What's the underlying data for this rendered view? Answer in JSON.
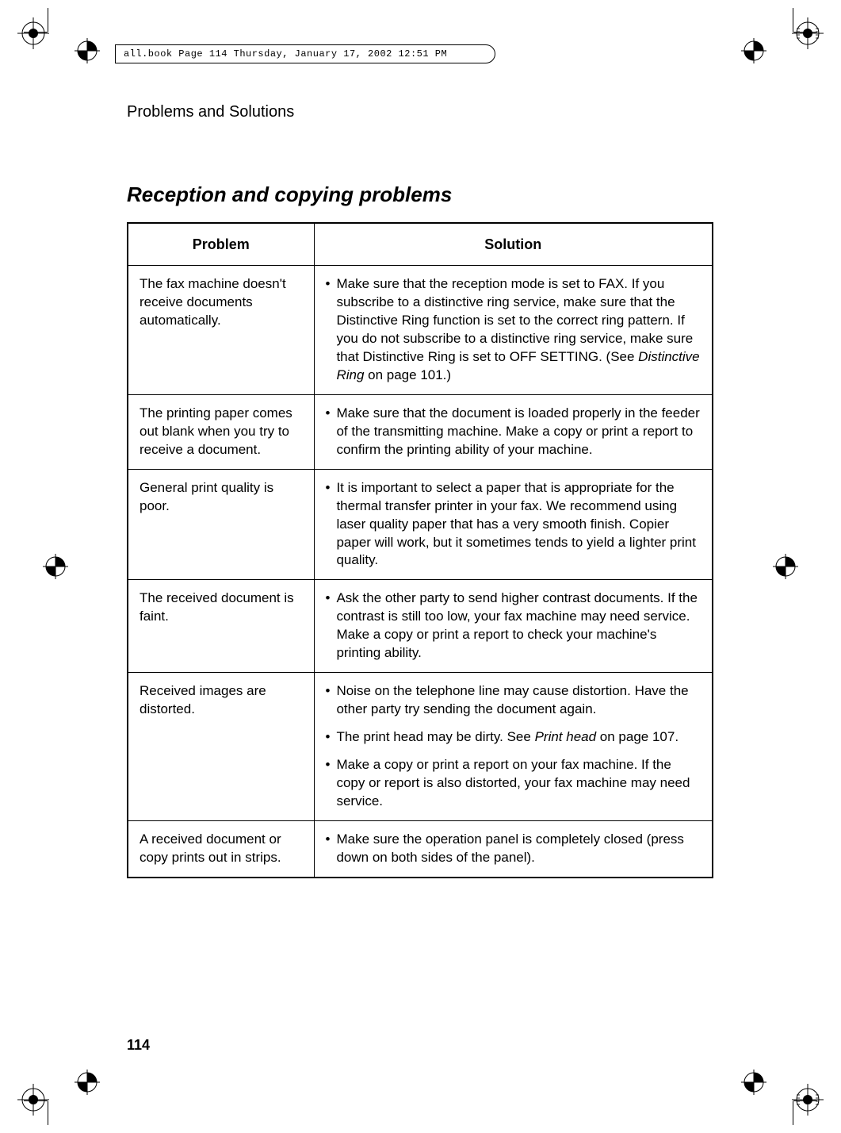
{
  "header_box": "all.book  Page 114  Thursday, January 17, 2002  12:51 PM",
  "running_header": "Problems and Solutions",
  "section_title": "Reception and copying problems",
  "table": {
    "headers": {
      "problem": "Problem",
      "solution": "Solution"
    },
    "rows": [
      {
        "problem": "The fax machine doesn't receive documents automatically.",
        "solutions": [
          {
            "pre": "Make sure that the reception mode is set to FAX. If you subscribe to a distinctive ring service, make sure that the Distinctive Ring function is set to the correct ring pattern. If you do not subscribe to a distinctive ring service, make sure that Distinctive Ring is set to OFF SETTING. (See ",
            "italic": "Distinctive Ring",
            "post": " on page 101.)"
          }
        ]
      },
      {
        "problem": "The printing paper comes out blank when you try to receive a document.",
        "solutions": [
          {
            "pre": "Make sure that the document is loaded properly in the feeder of the transmitting machine. Make a copy or print a report to confirm the printing ability of your machine.",
            "italic": "",
            "post": ""
          }
        ]
      },
      {
        "problem": "General print quality is poor.",
        "solutions": [
          {
            "pre": "It is important to select a paper that is appropriate for the thermal transfer printer in your fax. We recommend using laser quality paper that has a very smooth finish. Copier paper will work, but it sometimes tends to yield a lighter print quality.",
            "italic": "",
            "post": ""
          }
        ]
      },
      {
        "problem": "The received document is faint.",
        "solutions": [
          {
            "pre": "Ask the other party to send higher contrast documents. If the contrast is still too low, your fax machine may need service. Make a copy or print a report to check your machine's printing ability.",
            "italic": "",
            "post": ""
          }
        ]
      },
      {
        "problem": "Received images are distorted.",
        "solutions": [
          {
            "pre": "Noise on the telephone line may cause distortion. Have the other party try sending the document again.",
            "italic": "",
            "post": ""
          },
          {
            "pre": "The print head may be dirty. See ",
            "italic": "Print head",
            "post": " on page 107."
          },
          {
            "pre": "Make a copy or print a report on your fax machine. If the copy or report is also distorted, your fax machine may need service.",
            "italic": "",
            "post": ""
          }
        ]
      },
      {
        "problem": "A received document or copy prints out in strips.",
        "solutions": [
          {
            "pre": "Make sure the operation panel is completely closed (press down on both sides of the panel).",
            "italic": "",
            "post": ""
          }
        ]
      }
    ]
  },
  "page_number": "114",
  "colors": {
    "text": "#000000",
    "background": "#ffffff",
    "border": "#000000"
  },
  "fonts": {
    "body": "Arial, Helvetica, sans-serif",
    "header_box": "Courier New, monospace"
  }
}
